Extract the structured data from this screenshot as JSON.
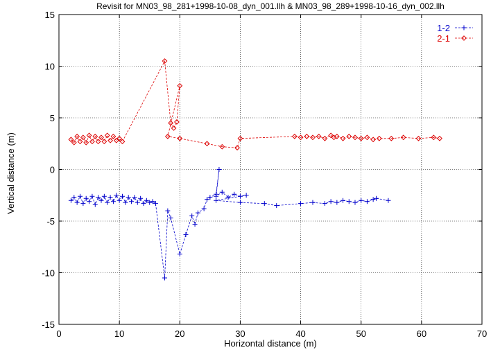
{
  "chart_data": {
    "type": "scatter",
    "title": "Revisit for MN03_98_281+1998-10-08_dyn_001.llh & MN03_98_289+1998-10-16_dyn_002.llh",
    "xlabel": "Horizontal distance (m)",
    "ylabel": "Vertical distance (m)",
    "xlim": [
      0,
      70
    ],
    "ylim": [
      -15,
      15
    ],
    "xticks": [
      0,
      10,
      20,
      30,
      40,
      50,
      60,
      70
    ],
    "yticks": [
      -15,
      -10,
      -5,
      0,
      5,
      10,
      15
    ],
    "grid": true,
    "legend_position": "top-right",
    "series": [
      {
        "name": "1-2",
        "color": "#0000cc",
        "marker": "plus",
        "line": "dashed",
        "points": [
          [
            2.0,
            -3.0
          ],
          [
            2.5,
            -2.7
          ],
          [
            3.0,
            -3.2
          ],
          [
            3.5,
            -2.6
          ],
          [
            4.0,
            -3.3
          ],
          [
            4.5,
            -2.8
          ],
          [
            5.0,
            -3.1
          ],
          [
            5.5,
            -2.6
          ],
          [
            6.0,
            -3.4
          ],
          [
            6.5,
            -2.7
          ],
          [
            7.0,
            -3.0
          ],
          [
            7.5,
            -2.6
          ],
          [
            8.0,
            -3.2
          ],
          [
            8.5,
            -2.7
          ],
          [
            9.0,
            -3.1
          ],
          [
            9.5,
            -2.5
          ],
          [
            10.0,
            -3.0
          ],
          [
            10.5,
            -2.6
          ],
          [
            11.0,
            -3.2
          ],
          [
            11.5,
            -2.7
          ],
          [
            12.0,
            -3.1
          ],
          [
            12.5,
            -2.7
          ],
          [
            13.0,
            -3.2
          ],
          [
            13.5,
            -2.8
          ],
          [
            14.0,
            -3.3
          ],
          [
            14.5,
            -3.0
          ],
          [
            15.0,
            -3.2
          ],
          [
            15.5,
            -3.1
          ],
          [
            16.0,
            -3.3
          ],
          [
            17.5,
            -10.5
          ],
          [
            18.0,
            -4.0
          ],
          [
            18.5,
            -4.7
          ],
          [
            20.0,
            -8.2
          ],
          [
            21.0,
            -6.3
          ],
          [
            22.0,
            -4.5
          ],
          [
            22.5,
            -5.3
          ],
          [
            23.0,
            -4.2
          ],
          [
            24.0,
            -3.8
          ],
          [
            24.5,
            -2.9
          ],
          [
            25.0,
            -2.7
          ],
          [
            26.0,
            -2.4
          ],
          [
            26.5,
            0.0
          ],
          [
            26.0,
            -2.6
          ],
          [
            27.0,
            -2.2
          ],
          [
            28.0,
            -2.7
          ],
          [
            29.0,
            -2.4
          ],
          [
            30.0,
            -2.6
          ],
          [
            31.0,
            -2.5
          ],
          [
            26.0,
            -3.0
          ],
          [
            30.0,
            -3.2
          ],
          [
            34.0,
            -3.3
          ],
          [
            36.0,
            -3.5
          ],
          [
            40.0,
            -3.3
          ],
          [
            42.0,
            -3.2
          ],
          [
            44.0,
            -3.3
          ],
          [
            45.0,
            -3.1
          ],
          [
            46.0,
            -3.2
          ],
          [
            47.0,
            -3.0
          ],
          [
            48.0,
            -3.1
          ],
          [
            49.0,
            -3.2
          ],
          [
            50.0,
            -3.0
          ],
          [
            51.0,
            -3.1
          ],
          [
            52.0,
            -2.9
          ],
          [
            52.5,
            -2.8
          ],
          [
            54.5,
            -3.0
          ]
        ]
      },
      {
        "name": "2-1",
        "color": "#dd0000",
        "marker": "diamond",
        "line": "dashed",
        "points": [
          [
            2.0,
            2.9
          ],
          [
            2.5,
            2.6
          ],
          [
            3.0,
            3.2
          ],
          [
            3.5,
            2.7
          ],
          [
            4.0,
            3.1
          ],
          [
            4.5,
            2.6
          ],
          [
            5.0,
            3.3
          ],
          [
            5.5,
            2.7
          ],
          [
            6.0,
            3.2
          ],
          [
            6.5,
            2.7
          ],
          [
            7.0,
            3.1
          ],
          [
            7.5,
            2.7
          ],
          [
            8.0,
            3.3
          ],
          [
            8.5,
            2.8
          ],
          [
            9.0,
            3.2
          ],
          [
            9.5,
            2.8
          ],
          [
            10.0,
            3.0
          ],
          [
            10.5,
            2.7
          ],
          [
            17.5,
            10.5
          ],
          [
            18.5,
            4.5
          ],
          [
            19.0,
            4.0
          ],
          [
            19.5,
            4.6
          ],
          [
            20.0,
            8.1
          ],
          [
            18.0,
            3.2
          ],
          [
            20.0,
            3.0
          ],
          [
            24.5,
            2.5
          ],
          [
            27.0,
            2.2
          ],
          [
            29.5,
            2.1
          ],
          [
            30.0,
            3.0
          ],
          [
            39.0,
            3.2
          ],
          [
            40.0,
            3.1
          ],
          [
            41.0,
            3.2
          ],
          [
            42.0,
            3.1
          ],
          [
            43.0,
            3.2
          ],
          [
            44.0,
            3.0
          ],
          [
            45.0,
            3.3
          ],
          [
            45.5,
            3.1
          ],
          [
            46.0,
            3.2
          ],
          [
            47.0,
            3.0
          ],
          [
            48.0,
            3.2
          ],
          [
            49.0,
            3.1
          ],
          [
            50.0,
            3.0
          ],
          [
            51.0,
            3.1
          ],
          [
            52.0,
            2.9
          ],
          [
            53.0,
            3.0
          ],
          [
            55.0,
            3.0
          ],
          [
            57.0,
            3.1
          ],
          [
            59.5,
            3.0
          ],
          [
            62.0,
            3.1
          ],
          [
            63.0,
            3.0
          ]
        ]
      }
    ]
  }
}
